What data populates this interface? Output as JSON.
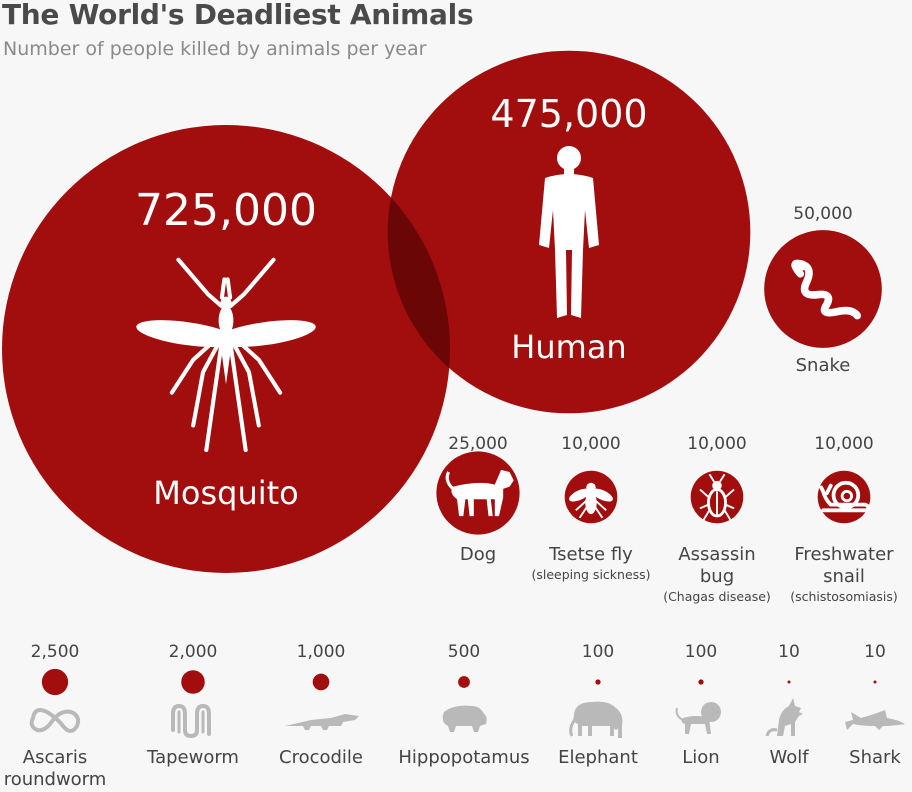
{
  "header": {
    "title": "The World's Deadliest Animals",
    "subtitle": "Number of people killed by animals per year"
  },
  "colors": {
    "circle": "#a20d0d",
    "overlap": "#6b0606",
    "icon_on_circle": "#ffffff",
    "icon_grey": "#b9b9b9",
    "label_text": "#444444",
    "value_big": "#ffffff"
  },
  "chart_data": {
    "type": "bubble",
    "title": "The World's Deadliest Animals",
    "subtitle": "Number of people killed by animals per year",
    "unit": "people killed per year",
    "items": [
      {
        "name": "Mosquito",
        "value": 725000,
        "value_label": "725,000",
        "note": "",
        "icon": "mosquito-icon"
      },
      {
        "name": "Human",
        "value": 475000,
        "value_label": "475,000",
        "note": "",
        "icon": "human-icon"
      },
      {
        "name": "Snake",
        "value": 50000,
        "value_label": "50,000",
        "note": "",
        "icon": "snake-icon"
      },
      {
        "name": "Dog",
        "value": 25000,
        "value_label": "25,000",
        "note": "",
        "icon": "dog-icon"
      },
      {
        "name": "Tsetse fly",
        "value": 10000,
        "value_label": "10,000",
        "note": "(sleeping sickness)",
        "icon": "fly-icon"
      },
      {
        "name": "Assassin bug",
        "value": 10000,
        "value_label": "10,000",
        "note": "(Chagas disease)",
        "icon": "bug-icon"
      },
      {
        "name": "Freshwater snail",
        "value": 10000,
        "value_label": "10,000",
        "note": "(schistosomiasis)",
        "icon": "snail-icon"
      },
      {
        "name": "Ascaris roundworm",
        "value": 2500,
        "value_label": "2,500",
        "note": "",
        "icon": "roundworm-icon"
      },
      {
        "name": "Tapeworm",
        "value": 2000,
        "value_label": "2,000",
        "note": "",
        "icon": "tapeworm-icon"
      },
      {
        "name": "Crocodile",
        "value": 1000,
        "value_label": "1,000",
        "note": "",
        "icon": "crocodile-icon"
      },
      {
        "name": "Hippopotamus",
        "value": 500,
        "value_label": "500",
        "note": "",
        "icon": "hippo-icon"
      },
      {
        "name": "Elephant",
        "value": 100,
        "value_label": "100",
        "note": "",
        "icon": "elephant-icon"
      },
      {
        "name": "Lion",
        "value": 100,
        "value_label": "100",
        "note": "",
        "icon": "lion-icon"
      },
      {
        "name": "Wolf",
        "value": 10,
        "value_label": "10",
        "note": "",
        "icon": "wolf-icon"
      },
      {
        "name": "Shark",
        "value": 10,
        "value_label": "10",
        "note": "",
        "icon": "shark-icon"
      }
    ]
  }
}
